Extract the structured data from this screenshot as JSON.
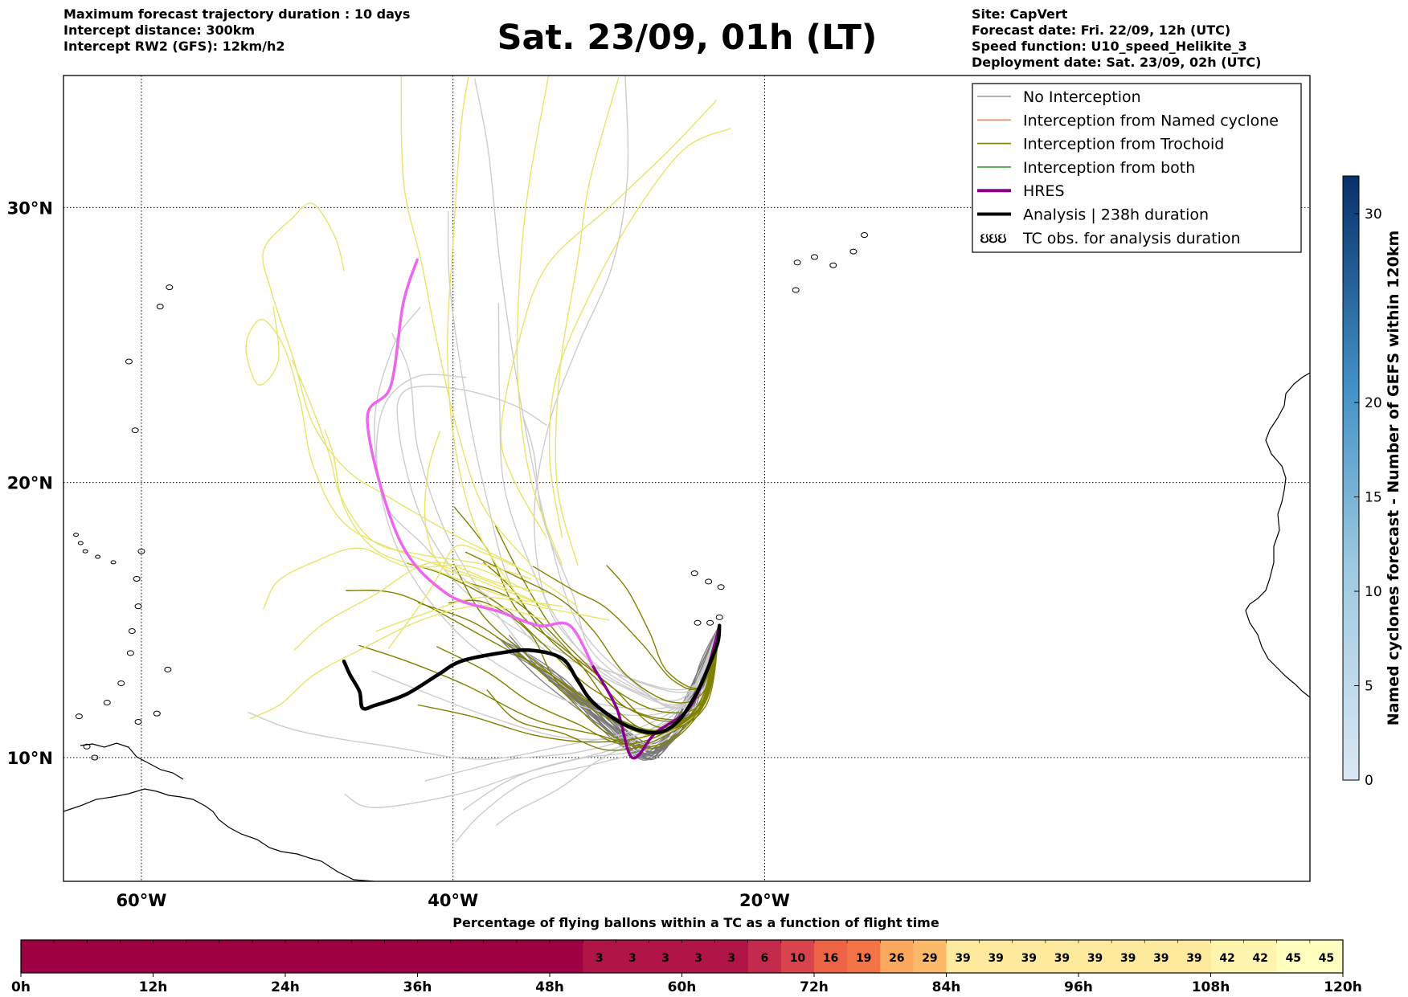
{
  "header": {
    "title": "Sat. 23/09, 01h (LT)",
    "left_lines": [
      "Maximum forecast trajectory duration : 10 days",
      "Intercept distance: 300km",
      "Intercept RW2 (GFS):  12km/h2"
    ],
    "right_lines": [
      "Site: CapVert",
      "Forecast date: Fri. 22/09, 12h (UTC)",
      "Speed function: U10_speed_Helikite_3",
      "Deployment date: Sat. 23/09, 02h (UTC)"
    ]
  },
  "chart_data": [
    {
      "type": "line",
      "subtype": "map-trajectories",
      "x_axis": {
        "range_deg": [
          -65,
          15
        ],
        "ticks": [
          -60,
          -40,
          -20
        ],
        "tick_labels": [
          "60°W",
          "40°W",
          "20°W"
        ]
      },
      "y_axis": {
        "range_deg": [
          5.5,
          34.8
        ],
        "ticks": [
          10,
          20,
          30
        ],
        "tick_labels": [
          "10°N",
          "20°N",
          "30°N"
        ]
      },
      "grid": true,
      "legend_position": "top-right",
      "legend": [
        {
          "label": "No Interception",
          "color": "#999999",
          "style": "thin"
        },
        {
          "label": "Interception from Named cyclone",
          "color": "#ff7f50",
          "style": "thin"
        },
        {
          "label": "Interception from Trochoid",
          "color": "#808000",
          "style": "thin"
        },
        {
          "label": "Interception from both",
          "color": "#2ca02c",
          "style": "thin"
        },
        {
          "label": "HRES",
          "color": "#8b008b",
          "style": "thick"
        },
        {
          "label": "Analysis | 238h duration",
          "color": "#000000",
          "style": "thick"
        },
        {
          "label": "TC obs. for analysis duration",
          "color": "#000000",
          "style": "symbol",
          "symbol": "ઇઇઇ"
        }
      ],
      "series": [
        {
          "name": "HRES",
          "color_early": "#ee66ee",
          "color_late": "#8b008b",
          "points": [
            [
              -42.3,
              28.1
            ],
            [
              -43.2,
              26.5
            ],
            [
              -44.0,
              23.5
            ],
            [
              -45.5,
              22.2
            ],
            [
              -43.5,
              18.0
            ],
            [
              -40.5,
              16.0
            ],
            [
              -37.0,
              15.3
            ],
            [
              -34.5,
              14.8
            ],
            [
              -32.5,
              14.8
            ],
            [
              -31.0,
              13.3
            ],
            [
              -29.5,
              11.8
            ],
            [
              -28.5,
              10.0
            ],
            [
              -27.0,
              10.9
            ],
            [
              -25.0,
              11.7
            ],
            [
              -23.8,
              13.0
            ],
            [
              -22.9,
              14.8
            ]
          ]
        },
        {
          "name": "Analysis | 238h duration",
          "color": "#000000",
          "points": [
            [
              -47.0,
              13.5
            ],
            [
              -46.6,
              13.0
            ],
            [
              -46.0,
              12.4
            ],
            [
              -45.8,
              11.8
            ],
            [
              -45.0,
              11.9
            ],
            [
              -43.0,
              12.3
            ],
            [
              -41.0,
              13.0
            ],
            [
              -39.5,
              13.5
            ],
            [
              -37.0,
              13.8
            ],
            [
              -35.0,
              13.9
            ],
            [
              -33.0,
              13.6
            ],
            [
              -32.0,
              12.8
            ],
            [
              -31.0,
              12.0
            ],
            [
              -29.0,
              11.2
            ],
            [
              -27.0,
              10.9
            ],
            [
              -25.6,
              11.3
            ],
            [
              -24.4,
              12.3
            ],
            [
              -23.6,
              13.3
            ],
            [
              -23.0,
              14.2
            ],
            [
              -22.9,
              14.8
            ]
          ]
        }
      ],
      "ensemble_groups": [
        {
          "name": "No Interception (dark)",
          "color": "#777777",
          "count": 20
        },
        {
          "name": "No Interception (light)",
          "color": "#cccccc",
          "count": 16
        },
        {
          "name": "Interception from Trochoid",
          "color": "#808000",
          "count": 16
        },
        {
          "name": "Yellow trajectories",
          "color": "#e8e46a",
          "count": 16
        }
      ],
      "colorbar": {
        "label": "Named cyclones forecast - Number of GEFS within 120km",
        "range": [
          0,
          32
        ],
        "ticks": [
          0,
          5,
          10,
          15,
          20,
          30
        ],
        "color_low": "#dbe7f4",
        "color_high": "#08306b"
      }
    },
    {
      "type": "heatmap",
      "title": "Percentage of flying ballons within a TC as a function of flight time",
      "x_tick_labels": [
        "0h",
        "12h",
        "24h",
        "36h",
        "48h",
        "60h",
        "72h",
        "84h",
        "96h",
        "108h",
        "120h"
      ],
      "bin_hours": 3,
      "values": [
        0,
        0,
        0,
        0,
        0,
        0,
        0,
        0,
        0,
        0,
        0,
        0,
        0,
        0,
        0,
        0,
        0,
        3,
        3,
        3,
        3,
        3,
        6,
        10,
        16,
        19,
        26,
        29,
        39,
        39,
        39,
        39,
        39,
        39,
        39,
        39,
        42,
        42,
        45,
        45
      ],
      "color_scale": [
        "#9e0142",
        "#d53e4f",
        "#f46d43",
        "#fdae61",
        "#fee08b",
        "#ffffbf"
      ]
    }
  ]
}
